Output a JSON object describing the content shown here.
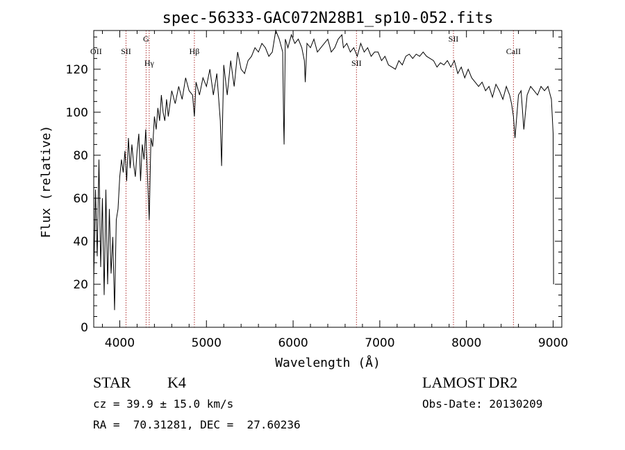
{
  "chart_data": {
    "type": "line",
    "title": "spec-56333-GAC072N28B1_sp10-052.fits",
    "xlabel": "Wavelength (Å)",
    "ylabel": "Flux (relative)",
    "xlim": [
      3700,
      9100
    ],
    "ylim": [
      0,
      138
    ],
    "xticks": [
      4000,
      5000,
      6000,
      7000,
      8000,
      9000
    ],
    "yticks": [
      0,
      20,
      40,
      60,
      80,
      100,
      120
    ],
    "grid": false,
    "line_color": "#000000",
    "marker_color": "#b03030",
    "markers": [
      {
        "label": "OII",
        "wavelength": 3727,
        "label_row": "mid"
      },
      {
        "label": "SII",
        "wavelength": 4072,
        "label_row": "mid"
      },
      {
        "label": "G",
        "wavelength": 4304,
        "label_row": "high"
      },
      {
        "label": "Hγ",
        "wavelength": 4340,
        "label_row": "low"
      },
      {
        "label": "Hβ",
        "wavelength": 4861,
        "label_row": "mid"
      },
      {
        "label": "SII",
        "wavelength": 6731,
        "label_row": "low"
      },
      {
        "label": "SII",
        "wavelength": 7850,
        "label_row": "high"
      },
      {
        "label": "CaII",
        "wavelength": 8542,
        "label_row": "mid"
      }
    ],
    "series": [
      {
        "x": [
          3700,
          3720,
          3740,
          3760,
          3780,
          3800,
          3820,
          3840,
          3860,
          3880,
          3900,
          3920,
          3940,
          3960,
          3980,
          4000,
          4020,
          4040,
          4060,
          4080,
          4100,
          4120,
          4140,
          4160,
          4180,
          4200,
          4220,
          4240,
          4260,
          4280,
          4300,
          4320,
          4340,
          4360,
          4380,
          4400,
          4420,
          4440,
          4460,
          4480,
          4500,
          4520,
          4540,
          4560,
          4580,
          4600,
          4640,
          4680,
          4720,
          4760,
          4800,
          4840,
          4861,
          4880,
          4920,
          4960,
          5000,
          5040,
          5080,
          5120,
          5160,
          5175,
          5200,
          5240,
          5280,
          5320,
          5360,
          5400,
          5440,
          5480,
          5520,
          5560,
          5600,
          5640,
          5680,
          5720,
          5760,
          5800,
          5840,
          5880,
          5890,
          5896,
          5910,
          5940,
          5980,
          6020,
          6060,
          6100,
          6130,
          6140,
          6160,
          6200,
          6240,
          6280,
          6320,
          6360,
          6400,
          6440,
          6480,
          6520,
          6563,
          6580,
          6620,
          6660,
          6700,
          6740,
          6780,
          6820,
          6860,
          6900,
          6940,
          6980,
          7020,
          7060,
          7100,
          7140,
          7180,
          7220,
          7260,
          7300,
          7340,
          7380,
          7420,
          7460,
          7500,
          7540,
          7580,
          7620,
          7660,
          7700,
          7740,
          7780,
          7820,
          7860,
          7900,
          7940,
          7980,
          8020,
          8060,
          8100,
          8140,
          8180,
          8220,
          8260,
          8300,
          8340,
          8380,
          8420,
          8460,
          8498,
          8520,
          8542,
          8560,
          8600,
          8630,
          8662,
          8700,
          8740,
          8780,
          8820,
          8860,
          8900,
          8940,
          8980,
          9000,
          9005
        ],
        "y": [
          22,
          64,
          33,
          78,
          28,
          60,
          15,
          64,
          20,
          55,
          25,
          42,
          8,
          50,
          55,
          70,
          78,
          72,
          82,
          68,
          88,
          74,
          85,
          76,
          70,
          82,
          90,
          68,
          85,
          78,
          92,
          70,
          50,
          88,
          84,
          98,
          92,
          102,
          96,
          108,
          100,
          96,
          106,
          98,
          104,
          110,
          104,
          112,
          106,
          116,
          110,
          108,
          98,
          114,
          108,
          116,
          112,
          120,
          108,
          118,
          96,
          75,
          122,
          108,
          124,
          112,
          128,
          120,
          118,
          124,
          126,
          130,
          128,
          132,
          130,
          126,
          128,
          138,
          134,
          128,
          96,
          85,
          134,
          130,
          136,
          132,
          134,
          130,
          124,
          114,
          132,
          130,
          134,
          128,
          130,
          132,
          134,
          128,
          130,
          134,
          136,
          130,
          132,
          128,
          130,
          126,
          132,
          128,
          130,
          126,
          128,
          128,
          124,
          126,
          122,
          121,
          120,
          124,
          122,
          126,
          127,
          125,
          127,
          126,
          128,
          126,
          125,
          124,
          121,
          123,
          122,
          124,
          121,
          124,
          118,
          121,
          116,
          120,
          116,
          114,
          112,
          114,
          110,
          112,
          107,
          113,
          110,
          106,
          112,
          108,
          104,
          98,
          88,
          108,
          110,
          92,
          108,
          112,
          110,
          108,
          112,
          110,
          112,
          106,
          90,
          20
        ]
      }
    ]
  },
  "info": {
    "class_label": "STAR",
    "subclass_label": "K4",
    "survey_label": "LAMOST DR2",
    "cz_line": "cz = 39.9 ± 15.0 km/s",
    "obs_date_line": "Obs-Date: 20130209",
    "coords_line": "RA =  70.31281, DEC =  27.60236"
  }
}
